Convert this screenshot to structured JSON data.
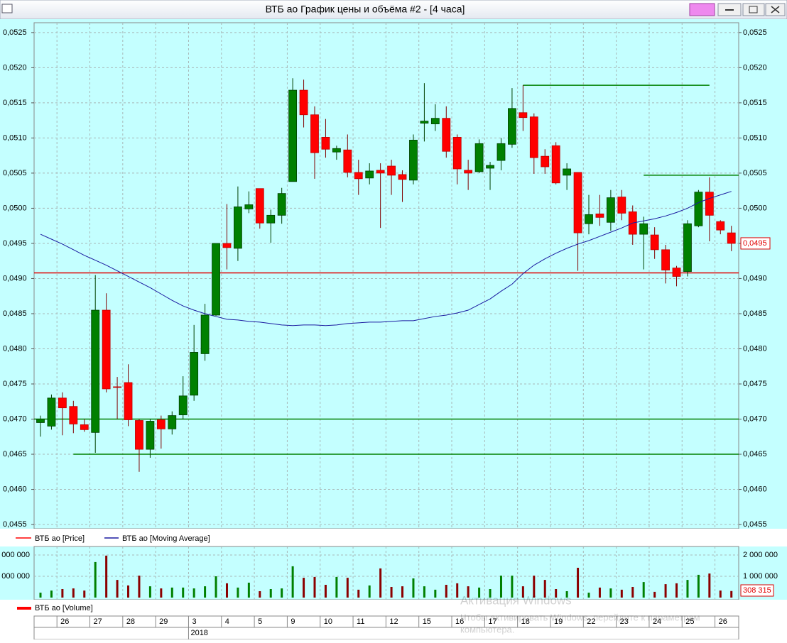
{
  "window": {
    "title": "ВТБ ао График цены и объёма #2 - [4 часа]"
  },
  "watermark": {
    "title": "Активация Windows",
    "line1": "Чтобы активировать Windows, перейдите к параметрам",
    "line2": "компьютера."
  },
  "chart_data": [
    {
      "type": "candlestick",
      "categories": [
        null,
        null,
        "26",
        null,
        null,
        "27",
        null,
        null,
        "28",
        null,
        null,
        "29",
        null,
        null,
        "3",
        null,
        null,
        "4",
        null,
        null,
        "5",
        null,
        null,
        "9",
        null,
        null,
        "10",
        null,
        null,
        "11",
        null,
        null,
        "12",
        null,
        null,
        "15",
        null,
        null,
        "16",
        null,
        null,
        "17",
        null,
        null,
        "18",
        null,
        null,
        "19",
        null,
        null,
        "22",
        null,
        null,
        "23",
        null,
        null,
        "24",
        null,
        null,
        "25",
        null,
        null,
        "26",
        null
      ],
      "year": {
        "label": "2018",
        "category_index": 14
      },
      "ylim": [
        0.04544,
        0.05264
      ],
      "yticks": [
        {
          "value": 0.0455,
          "label": "0,0455"
        },
        {
          "value": 0.046,
          "label": "0,0460"
        },
        {
          "value": 0.0465,
          "label": "0,0465"
        },
        {
          "value": 0.047,
          "label": "0,0470"
        },
        {
          "value": 0.0475,
          "label": "0,0475"
        },
        {
          "value": 0.048,
          "label": "0,0480"
        },
        {
          "value": 0.0485,
          "label": "0,0485"
        },
        {
          "value": 0.049,
          "label": "0,0490"
        },
        {
          "value": 0.0495,
          "label": "0,0495"
        },
        {
          "value": 0.05,
          "label": "0,0500"
        },
        {
          "value": 0.0505,
          "label": "0,0505"
        },
        {
          "value": 0.051,
          "label": "0,0510"
        },
        {
          "value": 0.0515,
          "label": "0,0515"
        },
        {
          "value": 0.052,
          "label": "0,0520"
        },
        {
          "value": 0.0525,
          "label": "0,0525"
        }
      ],
      "grid": true,
      "series": [
        {
          "name": "ВТБ ао [Price]",
          "color": "#ff0000",
          "up_color": "#008000",
          "down_color": "#ff0000",
          "open": [
            0.04695,
            0.0469,
            0.0473,
            0.04718,
            0.04692,
            0.04681,
            0.04855,
            0.04746,
            0.04752,
            0.04698,
            0.04657,
            0.04699,
            0.04686,
            0.04706,
            0.04734,
            0.04793,
            0.04848,
            0.0495,
            0.04943,
            0.04999,
            0.05028,
            0.04979,
            0.0499,
            0.05038,
            0.05168,
            0.05133,
            0.05101,
            0.0508,
            0.05083,
            0.05051,
            0.05043,
            0.05054,
            0.0506,
            0.05048,
            0.0504,
            0.05121,
            0.0512,
            0.05128,
            0.05101,
            0.05054,
            0.05052,
            0.05057,
            0.05068,
            0.05091,
            0.05136,
            0.0513,
            0.05074,
            0.05089,
            0.05047,
            0.05051,
            0.04978,
            0.04992,
            0.0498,
            0.05016,
            0.04995,
            0.04963,
            0.04962,
            0.04941,
            0.04915,
            0.0491,
            0.04975,
            0.05023,
            0.04981,
            0.04965
          ],
          "high": [
            0.04705,
            0.04735,
            0.04738,
            0.04726,
            0.047,
            0.04905,
            0.04879,
            0.0476,
            0.04778,
            0.047,
            0.047,
            0.04705,
            0.04711,
            0.04761,
            0.04834,
            0.04864,
            0.0495,
            0.05006,
            0.05031,
            0.05024,
            0.05028,
            0.04998,
            0.05029,
            0.05185,
            0.05183,
            0.05145,
            0.05127,
            0.05089,
            0.05105,
            0.05069,
            0.05064,
            0.05064,
            0.05069,
            0.05054,
            0.05105,
            0.05178,
            0.05148,
            0.05145,
            0.05105,
            0.05069,
            0.05098,
            0.05066,
            0.051,
            0.05171,
            0.05175,
            0.05135,
            0.05084,
            0.05094,
            0.05064,
            0.05051,
            0.05019,
            0.05019,
            0.05026,
            0.05026,
            0.05004,
            0.04988,
            0.04973,
            0.04948,
            0.04918,
            0.04983,
            0.05026,
            0.05044,
            0.04983,
            0.04975
          ],
          "low": [
            0.04675,
            0.04685,
            0.04677,
            0.0468,
            0.04682,
            0.04652,
            0.04738,
            0.047,
            0.0469,
            0.04625,
            0.04645,
            0.04658,
            0.04678,
            0.047,
            0.04726,
            0.04783,
            0.04847,
            0.04913,
            0.04925,
            0.04993,
            0.04971,
            0.04951,
            0.04978,
            0.05038,
            0.05115,
            0.05042,
            0.05072,
            0.05069,
            0.05044,
            0.05019,
            0.05034,
            0.04972,
            0.05019,
            0.05009,
            0.05034,
            0.05095,
            0.0511,
            0.05072,
            0.05034,
            0.05026,
            0.0505,
            0.05026,
            0.05054,
            0.05086,
            0.0511,
            0.05049,
            0.05049,
            0.05034,
            0.05026,
            0.04911,
            0.04963,
            0.04975,
            0.04968,
            0.04983,
            0.04948,
            0.04913,
            0.04928,
            0.04893,
            0.04889,
            0.04903,
            0.04973,
            0.04953,
            0.04963,
            0.04939
          ],
          "close": [
            0.047,
            0.0473,
            0.04716,
            0.04693,
            0.04685,
            0.04855,
            0.04743,
            0.04745,
            0.04699,
            0.04657,
            0.04697,
            0.04686,
            0.04705,
            0.04733,
            0.04795,
            0.04848,
            0.0495,
            0.04944,
            0.05002,
            0.05005,
            0.04979,
            0.0499,
            0.05021,
            0.05168,
            0.05133,
            0.05079,
            0.05084,
            0.05085,
            0.05051,
            0.05042,
            0.05053,
            0.0505,
            0.05047,
            0.05041,
            0.05097,
            0.05124,
            0.05128,
            0.05081,
            0.05056,
            0.0505,
            0.05092,
            0.05061,
            0.05092,
            0.05142,
            0.05129,
            0.05072,
            0.05059,
            0.05036,
            0.05056,
            0.04965,
            0.04991,
            0.04987,
            0.05015,
            0.04993,
            0.04963,
            0.04978,
            0.04941,
            0.04912,
            0.04903,
            0.04978,
            0.05023,
            0.0499,
            0.04969,
            0.0495
          ]
        },
        {
          "name": "ВТБ ао [Moving Average]",
          "type": "line",
          "color": "#1a1aa0",
          "values": [
            0.04963,
            0.04956,
            0.04949,
            0.04941,
            0.04933,
            0.04926,
            0.04919,
            0.04911,
            0.04903,
            0.04895,
            0.04887,
            0.04878,
            0.04869,
            0.04861,
            0.04855,
            0.0485,
            0.04846,
            0.04842,
            0.04841,
            0.04839,
            0.04838,
            0.04836,
            0.04834,
            0.04833,
            0.04834,
            0.04834,
            0.04833,
            0.04834,
            0.04836,
            0.04837,
            0.04838,
            0.04838,
            0.04839,
            0.0484,
            0.0484,
            0.04843,
            0.04846,
            0.04848,
            0.04851,
            0.04855,
            0.04863,
            0.04871,
            0.04882,
            0.04892,
            0.04907,
            0.04919,
            0.04928,
            0.04936,
            0.04943,
            0.04949,
            0.04954,
            0.0496,
            0.04966,
            0.04972,
            0.04979,
            0.04982,
            0.04985,
            0.04989,
            0.04994,
            0.05,
            0.05008,
            0.05014,
            0.05019,
            0.05024
          ]
        }
      ],
      "levels": [
        {
          "value": 0.04908,
          "color": "#e00000"
        },
        {
          "value": 0.047,
          "color": "#008000"
        },
        {
          "value": 0.0465,
          "color": "#008000",
          "from": 3
        },
        {
          "value": 0.05175,
          "color": "#008000",
          "from": 44,
          "to": 61
        },
        {
          "value": 0.05047,
          "color": "#008000",
          "from": 55
        }
      ],
      "last_price": {
        "value": 0.0495,
        "label": "0,0495"
      }
    },
    {
      "type": "bar",
      "ylim": [
        0,
        2400000
      ],
      "yticks": [
        {
          "value": 1000000,
          "label": "1 000 000"
        },
        {
          "value": 2000000,
          "label": "2 000 000"
        }
      ],
      "series": [
        {
          "name": "ВТБ ао [Volume]",
          "color": "#ff0000",
          "up_color": "#008000",
          "down_color": "#8b0000",
          "values": [
            230000,
            330000,
            400000,
            430000,
            330000,
            1670000,
            1970000,
            830000,
            570000,
            1030000,
            530000,
            430000,
            470000,
            470000,
            430000,
            530000,
            1000000,
            670000,
            470000,
            700000,
            300000,
            400000,
            430000,
            1470000,
            930000,
            970000,
            600000,
            970000,
            930000,
            370000,
            570000,
            1370000,
            500000,
            530000,
            900000,
            530000,
            370000,
            600000,
            670000,
            530000,
            470000,
            400000,
            1030000,
            1030000,
            530000,
            1030000,
            830000,
            400000,
            300000,
            1400000,
            230000,
            470000,
            430000,
            370000,
            500000,
            730000,
            270000,
            630000,
            670000,
            830000,
            1070000,
            1130000,
            330000,
            308315
          ]
        }
      ],
      "last_value": {
        "value": 308315,
        "label": "308 315"
      }
    }
  ]
}
